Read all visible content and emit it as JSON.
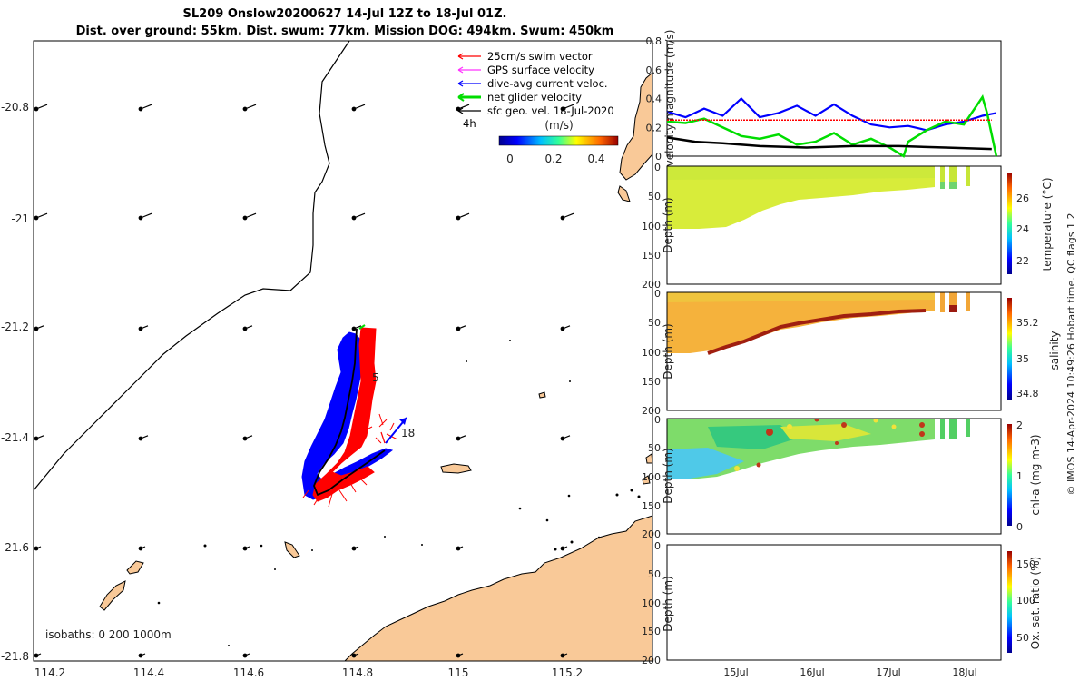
{
  "header": {
    "title_line1": "SL209 Onslow20200627 14-Jul 12Z to 18-Jul 01Z.",
    "title_line2": "Dist. over ground: 55km. Dist. swum: 77km. Mission DOG: 494km. Swum: 450km"
  },
  "colors": {
    "land": "#f9c998",
    "swim_vector": "#ff0000",
    "gps_velocity": "#ff33ff",
    "dive_avg_current": "#0000ff",
    "net_glider_velocity": "#00dd00",
    "sfc_geo_velocity": "#000000"
  },
  "map": {
    "lon_ticks": [
      "114.2",
      "114.4",
      "114.6",
      "114.8",
      "115",
      "115.2"
    ],
    "lat_ticks": [
      "-20.8",
      "-21",
      "-21.2",
      "-21.4",
      "-21.6",
      "-21.8"
    ],
    "legend": [
      {
        "label": "25cm/s swim vector",
        "color_key": "swim_vector"
      },
      {
        "label": "GPS surface velocity",
        "color_key": "gps_velocity"
      },
      {
        "label": "dive-avg current veloc.",
        "color_key": "dive_avg_current"
      },
      {
        "label": "net glider velocity",
        "color_key": "net_glider_velocity"
      },
      {
        "label": "sfc geo. vel. 18-Jul-2020",
        "color_key": "sfc_geo_velocity"
      }
    ],
    "legend_sub": "4h",
    "colorbar_label": "(m/s)",
    "colorbar_ticks": [
      "0",
      "0.2",
      "0.4"
    ],
    "track_labels": [
      "5",
      "18"
    ],
    "isobaths": "isobaths: 0   200  1000m"
  },
  "chart_data": [
    {
      "type": "line",
      "ylabel": "velocity magnitude (m/s)",
      "ylim": [
        0,
        0.8
      ],
      "yticks": [
        "0.8",
        "0.6",
        "0.4",
        "0.2",
        "0"
      ],
      "x_range_days": [
        14.5,
        18.1
      ],
      "series": [
        {
          "color_key": "dive_avg_current",
          "x": [
            14.5,
            14.7,
            14.9,
            15.1,
            15.3,
            15.5,
            15.7,
            15.9,
            16.1,
            16.3,
            16.5,
            16.7,
            16.9,
            17.1,
            17.3,
            17.5,
            17.7,
            17.9,
            18.05
          ],
          "values": [
            0.31,
            0.27,
            0.33,
            0.28,
            0.4,
            0.27,
            0.3,
            0.35,
            0.28,
            0.36,
            0.28,
            0.22,
            0.2,
            0.21,
            0.18,
            0.22,
            0.24,
            0.28,
            0.3
          ]
        },
        {
          "color_key": "net_glider_velocity",
          "x": [
            14.5,
            14.7,
            14.9,
            15.1,
            15.3,
            15.5,
            15.7,
            15.9,
            16.1,
            16.3,
            16.5,
            16.7,
            16.9,
            17.05,
            17.1,
            17.3,
            17.5,
            17.7,
            17.9,
            17.95,
            18.05
          ],
          "values": [
            0.24,
            0.23,
            0.26,
            0.2,
            0.14,
            0.12,
            0.15,
            0.08,
            0.1,
            0.16,
            0.08,
            0.12,
            0.06,
            0.0,
            0.1,
            0.18,
            0.24,
            0.22,
            0.41,
            0.3,
            0.0
          ]
        },
        {
          "color_key": "swim_vector",
          "x": [
            14.5,
            18.0
          ],
          "values": [
            0.25,
            0.25
          ]
        },
        {
          "color_key": "sfc_geo_velocity",
          "x": [
            14.5,
            14.8,
            15.1,
            15.5,
            16.0,
            16.5,
            17.0,
            17.5,
            18.0
          ],
          "values": [
            0.13,
            0.1,
            0.09,
            0.07,
            0.06,
            0.07,
            0.07,
            0.06,
            0.05
          ]
        }
      ]
    },
    {
      "type": "heatmap",
      "ylabel": "Depth (m)",
      "clabel": "temperature (°C)",
      "cticks": [
        "26",
        "24",
        "22"
      ],
      "ylim": [
        200,
        0
      ],
      "yticks": [
        "0",
        "50",
        "100",
        "150",
        "200"
      ]
    },
    {
      "type": "heatmap",
      "ylabel": "Depth (m)",
      "clabel": "salinity",
      "cticks": [
        "35.2",
        "35",
        "34.8"
      ],
      "ylim": [
        200,
        0
      ],
      "yticks": [
        "0",
        "50",
        "100",
        "150",
        "200"
      ]
    },
    {
      "type": "heatmap",
      "ylabel": "Depth (m)",
      "clabel": "chl-a (mg m-3)",
      "cticks": [
        "2",
        "1",
        "0"
      ],
      "ylim": [
        200,
        0
      ],
      "yticks": [
        "0",
        "50",
        "100",
        "150",
        "200"
      ]
    },
    {
      "type": "heatmap",
      "ylabel": "Depth (m)",
      "clabel": "Ox. sat. ratio (%)",
      "cticks": [
        "150",
        "100",
        "50"
      ],
      "ylim": [
        200,
        0
      ],
      "yticks": [
        "0",
        "50",
        "100",
        "150",
        "200"
      ],
      "xticks": [
        "15Jul",
        "16Jul",
        "17Jul",
        "18Jul"
      ]
    }
  ],
  "footer": {
    "credit": "© IMOS 14-Apr-2024 10:49:26 Hobart time. QC flags 1  2"
  }
}
